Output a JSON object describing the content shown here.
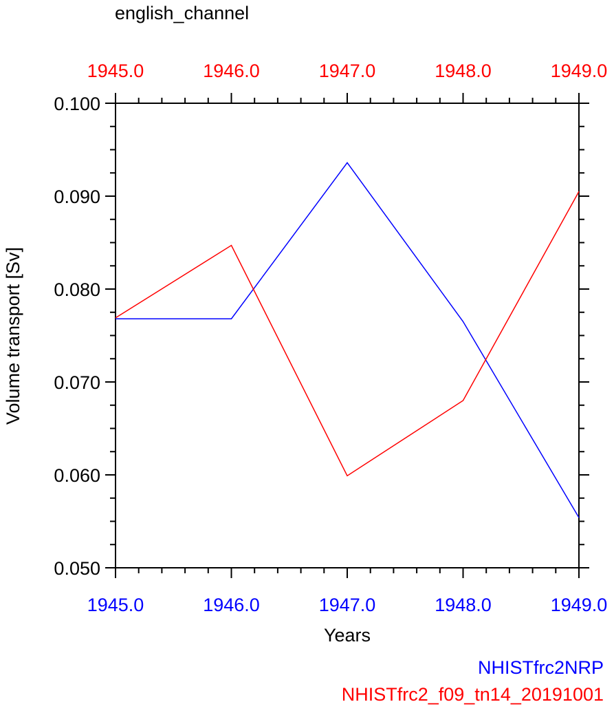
{
  "chart_data": {
    "type": "line",
    "title": "english_channel",
    "xlabel": "Years",
    "ylabel": "Volume transport [Sv]",
    "x": [
      1945,
      1946,
      1947,
      1948,
      1949
    ],
    "xlim": [
      1945,
      1949
    ],
    "ylim": [
      0.05,
      0.1
    ],
    "x_tick_labels_bottom": [
      "1945.0",
      "1946.0",
      "1947.0",
      "1948.0",
      "1949.0"
    ],
    "x_tick_labels_top": [
      "1945.0",
      "1946.0",
      "1947.0",
      "1948.0",
      "1949.0"
    ],
    "y_ticks": [
      0.05,
      0.06,
      0.07,
      0.08,
      0.09,
      0.1
    ],
    "y_tick_labels": [
      "0.050",
      "0.060",
      "0.070",
      "0.080",
      "0.090",
      "0.100"
    ],
    "grid": false,
    "legend_position": "bottom-right",
    "series": [
      {
        "name": "NHISTfrc2NRP",
        "color": "#0000ff",
        "values": [
          0.0768,
          0.0768,
          0.0936,
          0.0765,
          0.0554
        ]
      },
      {
        "name": "NHISTfrc2_f09_tn14_20191001",
        "color": "#ff0000",
        "values": [
          0.0769,
          0.0847,
          0.0599,
          0.068,
          0.0905
        ]
      }
    ],
    "colors": {
      "bottom_axis_labels": "#0000ff",
      "top_axis_labels": "#ff0000",
      "axes": "#000000"
    }
  }
}
